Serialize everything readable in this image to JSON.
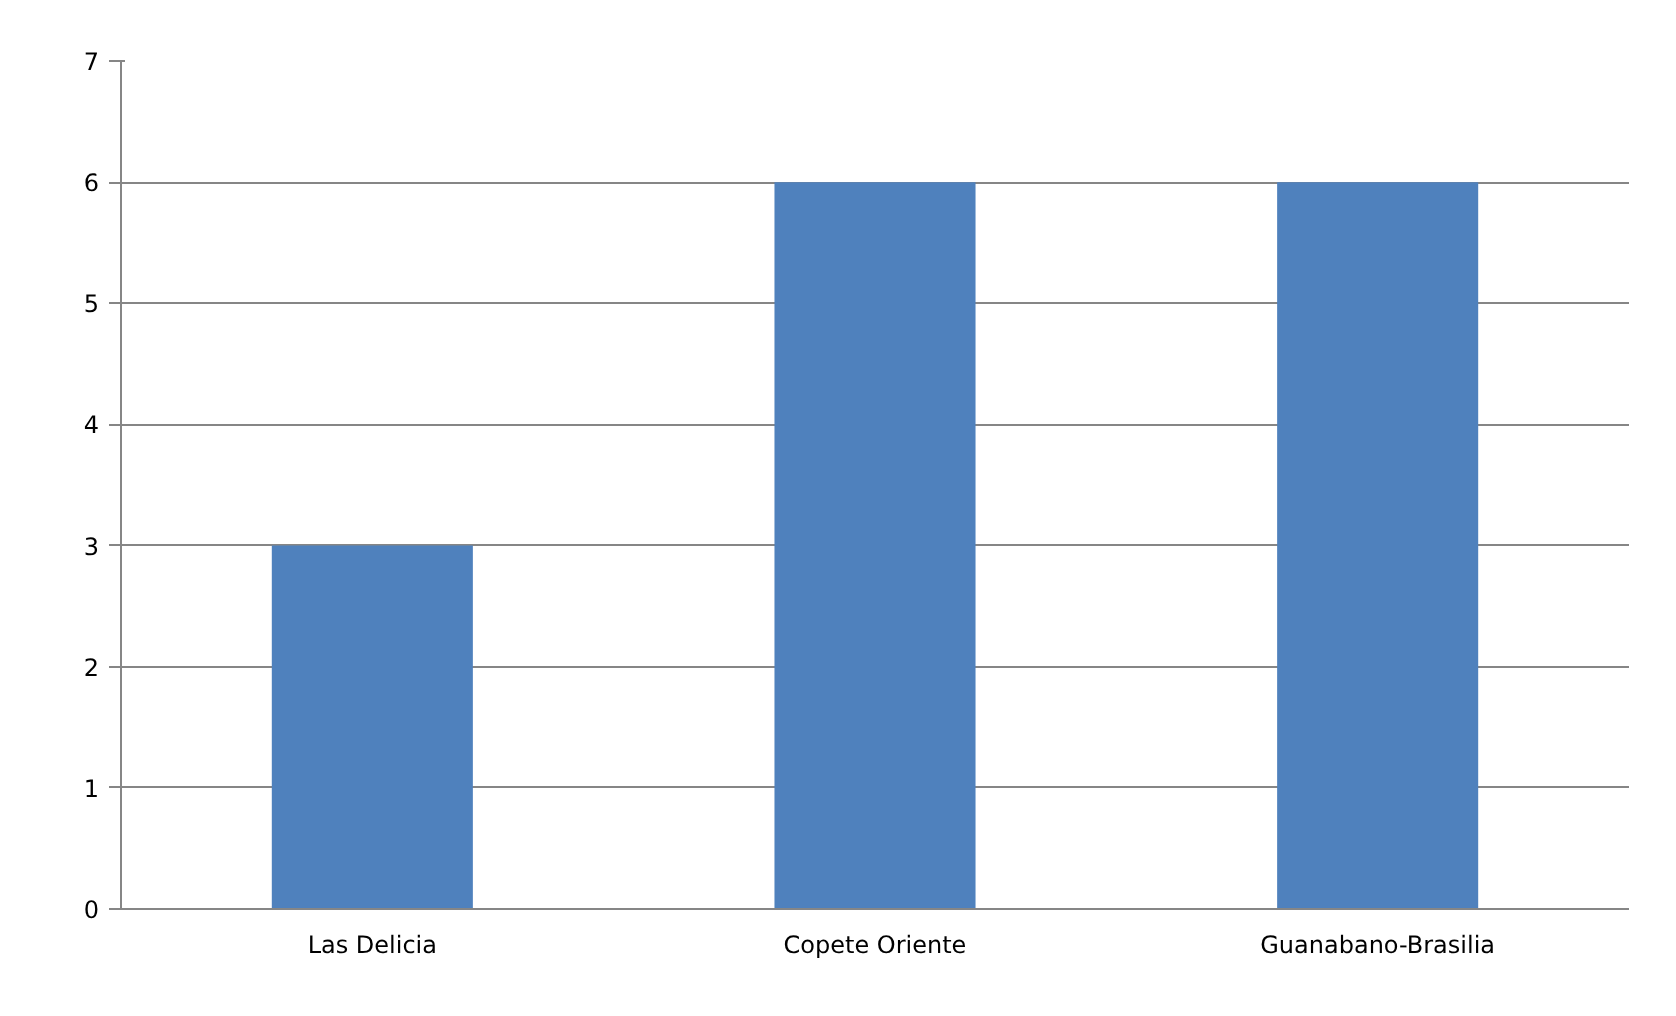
{
  "chart_data": {
    "type": "bar",
    "categories": [
      "Las Delicia",
      "Copete Oriente",
      "Guanabano-Brasilia"
    ],
    "values": [
      3,
      6,
      6
    ],
    "color": "#4f81bd",
    "ylim": [
      0,
      7
    ],
    "yticks": [
      0,
      1,
      2,
      3,
      4,
      5,
      6,
      7
    ],
    "grid": "y"
  }
}
